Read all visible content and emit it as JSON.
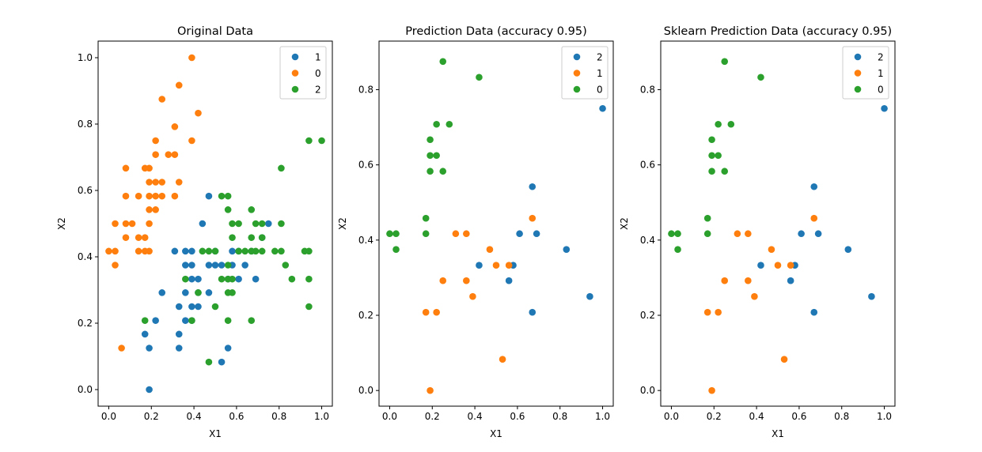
{
  "figure": {
    "colors": {
      "c0": "#1f77b4",
      "c1": "#ff7f0e",
      "c2": "#2ca02c"
    }
  },
  "chart_data": [
    {
      "type": "scatter",
      "title": "Original Data",
      "xlabel": "X1",
      "ylabel": "X2",
      "xlim": [
        -0.05,
        1.05
      ],
      "ylim": [
        -0.05,
        1.05
      ],
      "xticks": [
        "0.0",
        "0.2",
        "0.4",
        "0.6",
        "0.8",
        "1.0"
      ],
      "yticks": [
        "0.0",
        "0.2",
        "0.4",
        "0.6",
        "0.8",
        "1.0"
      ],
      "legend": "top-right",
      "series": [
        {
          "name": "1",
          "color": "#1f77b4",
          "points": [
            [
              0.19,
              0.0
            ],
            [
              0.19,
              0.125
            ],
            [
              0.17,
              0.167
            ],
            [
              0.22,
              0.208
            ],
            [
              0.25,
              0.292
            ],
            [
              0.31,
              0.417
            ],
            [
              0.33,
              0.125
            ],
            [
              0.33,
              0.167
            ],
            [
              0.33,
              0.25
            ],
            [
              0.36,
              0.208
            ],
            [
              0.36,
              0.292
            ],
            [
              0.36,
              0.375
            ],
            [
              0.36,
              0.417
            ],
            [
              0.39,
              0.208
            ],
            [
              0.39,
              0.25
            ],
            [
              0.39,
              0.333
            ],
            [
              0.39,
              0.375
            ],
            [
              0.39,
              0.417
            ],
            [
              0.42,
              0.25
            ],
            [
              0.42,
              0.292
            ],
            [
              0.42,
              0.333
            ],
            [
              0.44,
              0.5
            ],
            [
              0.47,
              0.292
            ],
            [
              0.47,
              0.375
            ],
            [
              0.47,
              0.583
            ],
            [
              0.5,
              0.375
            ],
            [
              0.5,
              0.417
            ],
            [
              0.53,
              0.083
            ],
            [
              0.53,
              0.375
            ],
            [
              0.56,
              0.125
            ],
            [
              0.56,
              0.333
            ],
            [
              0.58,
              0.375
            ],
            [
              0.58,
              0.417
            ],
            [
              0.61,
              0.333
            ],
            [
              0.61,
              0.417
            ],
            [
              0.64,
              0.375
            ],
            [
              0.67,
              0.417
            ],
            [
              0.69,
              0.333
            ],
            [
              0.72,
              0.458
            ],
            [
              0.75,
              0.5
            ]
          ]
        },
        {
          "name": "0",
          "color": "#ff7f0e",
          "points": [
            [
              0.0,
              0.417
            ],
            [
              0.03,
              0.375
            ],
            [
              0.03,
              0.5
            ],
            [
              0.03,
              0.417
            ],
            [
              0.06,
              0.125
            ],
            [
              0.08,
              0.458
            ],
            [
              0.08,
              0.583
            ],
            [
              0.08,
              0.667
            ],
            [
              0.08,
              0.5
            ],
            [
              0.11,
              0.5
            ],
            [
              0.14,
              0.417
            ],
            [
              0.14,
              0.458
            ],
            [
              0.14,
              0.583
            ],
            [
              0.17,
              0.417
            ],
            [
              0.17,
              0.458
            ],
            [
              0.17,
              0.667
            ],
            [
              0.19,
              0.417
            ],
            [
              0.19,
              0.5
            ],
            [
              0.19,
              0.542
            ],
            [
              0.19,
              0.583
            ],
            [
              0.19,
              0.625
            ],
            [
              0.19,
              0.667
            ],
            [
              0.22,
              0.542
            ],
            [
              0.22,
              0.583
            ],
            [
              0.22,
              0.625
            ],
            [
              0.22,
              0.708
            ],
            [
              0.22,
              0.75
            ],
            [
              0.25,
              0.583
            ],
            [
              0.25,
              0.625
            ],
            [
              0.25,
              0.875
            ],
            [
              0.28,
              0.708
            ],
            [
              0.31,
              0.583
            ],
            [
              0.31,
              0.708
            ],
            [
              0.31,
              0.792
            ],
            [
              0.33,
              0.625
            ],
            [
              0.33,
              0.917
            ],
            [
              0.39,
              0.75
            ],
            [
              0.39,
              1.0
            ],
            [
              0.42,
              0.833
            ]
          ]
        },
        {
          "name": "2",
          "color": "#2ca02c",
          "points": [
            [
              0.17,
              0.208
            ],
            [
              0.36,
              0.333
            ],
            [
              0.39,
              0.208
            ],
            [
              0.42,
              0.292
            ],
            [
              0.44,
              0.417
            ],
            [
              0.47,
              0.083
            ],
            [
              0.47,
              0.417
            ],
            [
              0.5,
              0.25
            ],
            [
              0.5,
              0.417
            ],
            [
              0.53,
              0.333
            ],
            [
              0.53,
              0.583
            ],
            [
              0.56,
              0.208
            ],
            [
              0.56,
              0.292
            ],
            [
              0.56,
              0.333
            ],
            [
              0.56,
              0.375
            ],
            [
              0.56,
              0.542
            ],
            [
              0.56,
              0.583
            ],
            [
              0.58,
              0.292
            ],
            [
              0.58,
              0.333
            ],
            [
              0.58,
              0.458
            ],
            [
              0.58,
              0.5
            ],
            [
              0.61,
              0.417
            ],
            [
              0.61,
              0.5
            ],
            [
              0.64,
              0.417
            ],
            [
              0.67,
              0.208
            ],
            [
              0.67,
              0.417
            ],
            [
              0.67,
              0.458
            ],
            [
              0.67,
              0.542
            ],
            [
              0.69,
              0.417
            ],
            [
              0.69,
              0.5
            ],
            [
              0.72,
              0.417
            ],
            [
              0.72,
              0.458
            ],
            [
              0.72,
              0.5
            ],
            [
              0.78,
              0.417
            ],
            [
              0.81,
              0.417
            ],
            [
              0.81,
              0.5
            ],
            [
              0.81,
              0.667
            ],
            [
              0.83,
              0.375
            ],
            [
              0.86,
              0.333
            ],
            [
              0.92,
              0.417
            ],
            [
              0.94,
              0.25
            ],
            [
              0.94,
              0.333
            ],
            [
              0.94,
              0.417
            ],
            [
              0.94,
              0.75
            ],
            [
              1.0,
              0.75
            ]
          ]
        }
      ]
    },
    {
      "type": "scatter",
      "title": "Prediction Data (accuracy 0.95)",
      "xlabel": "X1",
      "ylabel": "X2",
      "xlim": [
        -0.05,
        1.05
      ],
      "ylim": [
        -0.04167,
        0.92917
      ],
      "xticks": [
        "0.0",
        "0.2",
        "0.4",
        "0.6",
        "0.8",
        "1.0"
      ],
      "yticks": [
        "0.0",
        "0.2",
        "0.4",
        "0.6",
        "0.8"
      ],
      "legend": "top-right",
      "series": [
        {
          "name": "2",
          "color": "#1f77b4",
          "points": [
            [
              0.42,
              0.333
            ],
            [
              0.56,
              0.292
            ],
            [
              0.58,
              0.333
            ],
            [
              0.61,
              0.417
            ],
            [
              0.67,
              0.208
            ],
            [
              0.67,
              0.542
            ],
            [
              0.69,
              0.417
            ],
            [
              0.83,
              0.375
            ],
            [
              0.94,
              0.25
            ],
            [
              1.0,
              0.75
            ]
          ]
        },
        {
          "name": "1",
          "color": "#ff7f0e",
          "points": [
            [
              0.17,
              0.208
            ],
            [
              0.19,
              0.0
            ],
            [
              0.22,
              0.208
            ],
            [
              0.25,
              0.292
            ],
            [
              0.31,
              0.417
            ],
            [
              0.36,
              0.292
            ],
            [
              0.36,
              0.417
            ],
            [
              0.39,
              0.25
            ],
            [
              0.47,
              0.375
            ],
            [
              0.5,
              0.333
            ],
            [
              0.53,
              0.083
            ],
            [
              0.56,
              0.333
            ],
            [
              0.67,
              0.458
            ]
          ]
        },
        {
          "name": "0",
          "color": "#2ca02c",
          "points": [
            [
              0.0,
              0.417
            ],
            [
              0.03,
              0.417
            ],
            [
              0.03,
              0.375
            ],
            [
              0.17,
              0.458
            ],
            [
              0.17,
              0.417
            ],
            [
              0.19,
              0.583
            ],
            [
              0.19,
              0.625
            ],
            [
              0.19,
              0.667
            ],
            [
              0.22,
              0.625
            ],
            [
              0.22,
              0.708
            ],
            [
              0.25,
              0.583
            ],
            [
              0.25,
              0.875
            ],
            [
              0.28,
              0.708
            ],
            [
              0.42,
              0.833
            ]
          ]
        }
      ]
    },
    {
      "type": "scatter",
      "title": "Sklearn Prediction Data (accuracy 0.95)",
      "xlabel": "X1",
      "ylabel": "X2",
      "xlim": [
        -0.05,
        1.05
      ],
      "ylim": [
        -0.04167,
        0.92917
      ],
      "xticks": [
        "0.0",
        "0.2",
        "0.4",
        "0.6",
        "0.8",
        "1.0"
      ],
      "yticks": [
        "0.0",
        "0.2",
        "0.4",
        "0.6",
        "0.8"
      ],
      "legend": "top-right",
      "series": [
        {
          "name": "2",
          "color": "#1f77b4",
          "points": [
            [
              0.42,
              0.333
            ],
            [
              0.56,
              0.292
            ],
            [
              0.58,
              0.333
            ],
            [
              0.61,
              0.417
            ],
            [
              0.67,
              0.208
            ],
            [
              0.67,
              0.542
            ],
            [
              0.69,
              0.417
            ],
            [
              0.83,
              0.375
            ],
            [
              0.94,
              0.25
            ],
            [
              1.0,
              0.75
            ]
          ]
        },
        {
          "name": "1",
          "color": "#ff7f0e",
          "points": [
            [
              0.17,
              0.208
            ],
            [
              0.19,
              0.0
            ],
            [
              0.22,
              0.208
            ],
            [
              0.25,
              0.292
            ],
            [
              0.31,
              0.417
            ],
            [
              0.36,
              0.292
            ],
            [
              0.36,
              0.417
            ],
            [
              0.39,
              0.25
            ],
            [
              0.47,
              0.375
            ],
            [
              0.5,
              0.333
            ],
            [
              0.53,
              0.083
            ],
            [
              0.56,
              0.333
            ],
            [
              0.67,
              0.458
            ]
          ]
        },
        {
          "name": "0",
          "color": "#2ca02c",
          "points": [
            [
              0.0,
              0.417
            ],
            [
              0.03,
              0.417
            ],
            [
              0.03,
              0.375
            ],
            [
              0.17,
              0.458
            ],
            [
              0.17,
              0.417
            ],
            [
              0.19,
              0.583
            ],
            [
              0.19,
              0.625
            ],
            [
              0.19,
              0.667
            ],
            [
              0.22,
              0.625
            ],
            [
              0.22,
              0.708
            ],
            [
              0.25,
              0.583
            ],
            [
              0.25,
              0.875
            ],
            [
              0.28,
              0.708
            ],
            [
              0.42,
              0.833
            ]
          ]
        }
      ]
    }
  ]
}
